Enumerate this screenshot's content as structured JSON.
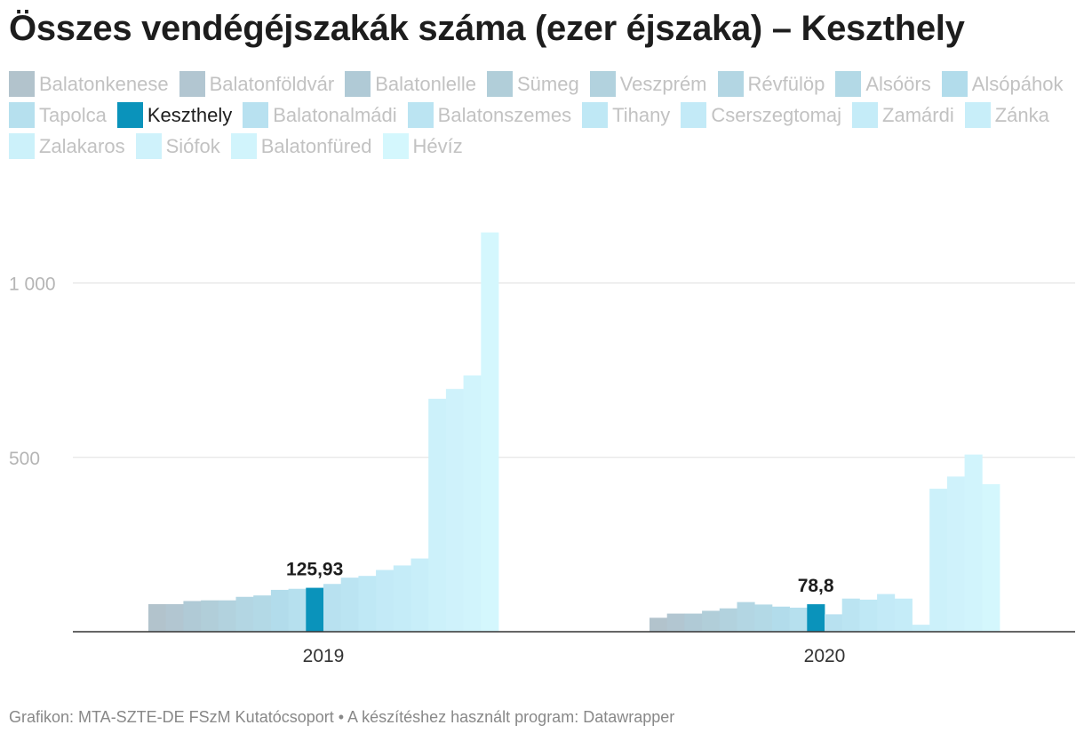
{
  "chart_data": {
    "type": "bar",
    "title": "Összes vendégéjszakák száma (ezer éjszaka) – Keszthely",
    "categories": [
      "2019",
      "2020"
    ],
    "highlight": "Keszthely",
    "highlight_color": "#0a93bb",
    "ylim": [
      0,
      1150
    ],
    "yticks": [
      {
        "value": 500,
        "label": "500"
      },
      {
        "value": 1000,
        "label": "1 000"
      }
    ],
    "series": [
      {
        "name": "Balatonkenese",
        "color": "#b2c3cc",
        "values": [
          79,
          40
        ]
      },
      {
        "name": "Balatonföldvár",
        "color": "#b2c6d1",
        "values": [
          79,
          52
        ]
      },
      {
        "name": "Balatonlelle",
        "color": "#b0cad6",
        "values": [
          88,
          52
        ]
      },
      {
        "name": "Sümeg",
        "color": "#b1ced9",
        "values": [
          90,
          60
        ]
      },
      {
        "name": "Veszprém",
        "color": "#b2d2de",
        "values": [
          90,
          67
        ]
      },
      {
        "name": "Révfülöp",
        "color": "#b3d6e3",
        "values": [
          100,
          85
        ]
      },
      {
        "name": "Alsóörs",
        "color": "#b3d9e6",
        "values": [
          104,
          78
        ]
      },
      {
        "name": "Alsópáhok",
        "color": "#b2dceb",
        "values": [
          120,
          72
        ]
      },
      {
        "name": "Tapolca",
        "color": "#b6e0ee",
        "values": [
          123,
          69
        ]
      },
      {
        "name": "Keszthely",
        "color": "#0a93bb",
        "values": [
          125.93,
          78.8
        ]
      },
      {
        "name": "Balatonalmádi",
        "color": "#b8e1f0",
        "values": [
          137,
          50
        ]
      },
      {
        "name": "Balatonszemes",
        "color": "#bbe4f2",
        "values": [
          155,
          95
        ]
      },
      {
        "name": "Tihany",
        "color": "#bfe8f5",
        "values": [
          160,
          92
        ]
      },
      {
        "name": "Cserszegtomaj",
        "color": "#c3eaf7",
        "values": [
          177,
          108
        ]
      },
      {
        "name": "Zamárdi",
        "color": "#c5ecf8",
        "values": [
          190,
          95
        ]
      },
      {
        "name": "Zánka",
        "color": "#c8eef9",
        "values": [
          210,
          20
        ]
      },
      {
        "name": "Zalakaros",
        "color": "#ccf1fa",
        "values": [
          668,
          410
        ]
      },
      {
        "name": "Siófok",
        "color": "#cff2fb",
        "values": [
          696,
          445
        ]
      },
      {
        "name": "Balatonfüred",
        "color": "#d1f4fc",
        "values": [
          735,
          508
        ]
      },
      {
        "name": "Hévíz",
        "color": "#d4f7fd",
        "values": [
          1145,
          423
        ]
      }
    ],
    "value_labels": [
      {
        "category": "2019",
        "series": "Keszthely",
        "text": "125,93"
      },
      {
        "category": "2020",
        "series": "Keszthely",
        "text": "78,8"
      }
    ]
  },
  "legend": [
    "Balatonkenese",
    "Balatonföldvár",
    "Balatonlelle",
    "Sümeg",
    "Veszprém",
    "Révfülöp",
    "Alsóörs",
    "Alsópáhok",
    "Tapolca",
    "Keszthely",
    "Balatonalmádi",
    "Balatonszemes",
    "Tihany",
    "Cserszegtomaj",
    "Zamárdi",
    "Zánka",
    "Zalakaros",
    "Siófok",
    "Balatonfüred",
    "Hévíz"
  ],
  "footer": "Grafikon: MTA-SZTE-DE FSzM Kutatócsoport • A készítéshez használt program: Datawrapper"
}
